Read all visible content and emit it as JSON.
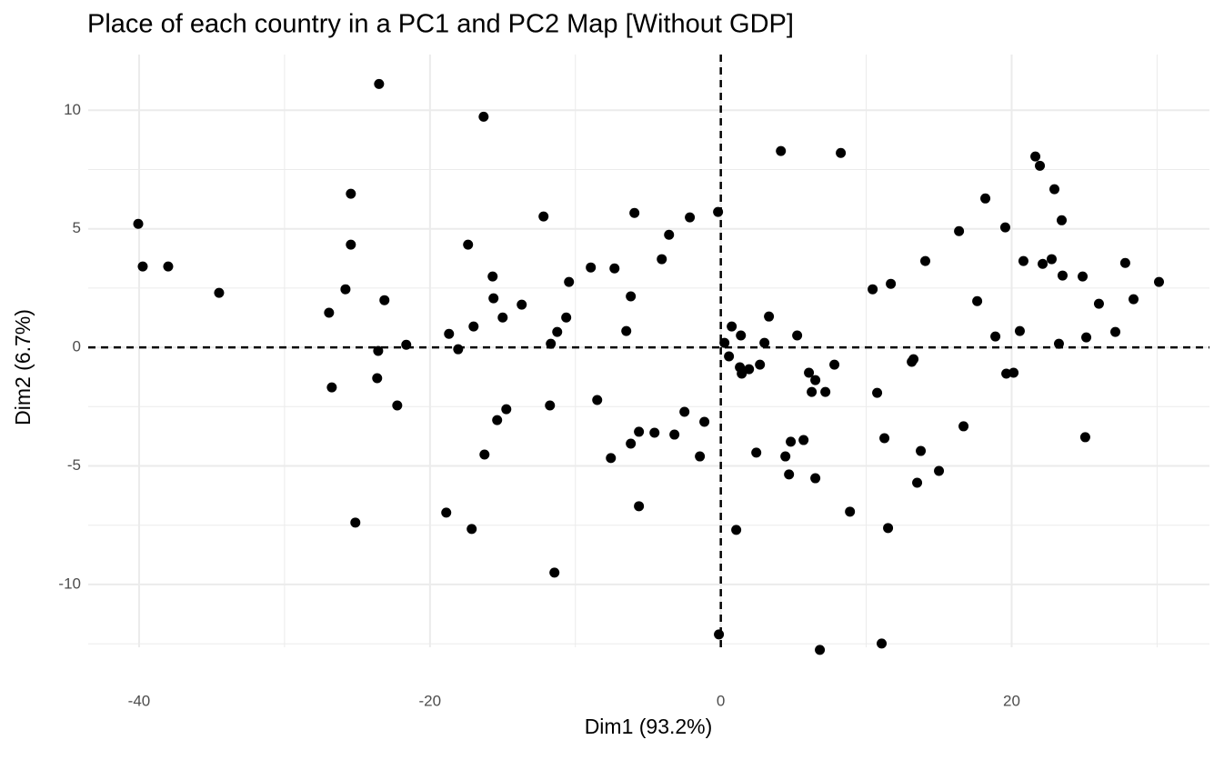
{
  "chart_data": {
    "type": "scatter",
    "title": "Place of each country in a PC1 and PC2 Map [Without GDP]",
    "x_label": "Dim1 (93.2%)",
    "y_label": "Dim2 (6.7%)",
    "xlim": [
      -43.5,
      33.6
    ],
    "ylim": [
      -12.65,
      12.35
    ],
    "xticks": [
      -40,
      -20,
      0,
      20
    ],
    "yticks": [
      -10,
      -5,
      0,
      5,
      10
    ],
    "minor_xticks": [
      -30,
      -10,
      10,
      30
    ],
    "minor_yticks": [
      -12.5,
      -7.5,
      -2.5,
      2.5,
      7.5
    ],
    "grid": true,
    "color": "#000000",
    "reference_lines": {
      "x": 0,
      "y": 0
    },
    "series": [
      {
        "name": "countries",
        "color": "#000000",
        "x": [
          -40.06,
          -39.75,
          -38.0,
          -34.5,
          -26.94,
          -26.75,
          -25.81,
          -25.44,
          -25.44,
          -25.13,
          -23.5,
          -23.56,
          -23.63,
          -23.13,
          -22.25,
          -21.63,
          -18.88,
          -18.69,
          -18.06,
          -17.38,
          -17.13,
          -17.0,
          -16.31,
          -16.25,
          -15.69,
          -15.63,
          -15.38,
          -15.0,
          -14.75,
          -13.69,
          -12.19,
          -11.75,
          -11.69,
          -11.44,
          -11.25,
          -10.63,
          -10.44,
          -8.94,
          -8.5,
          -7.56,
          -7.31,
          -6.5,
          -6.19,
          -6.19,
          -5.94,
          -5.63,
          -5.63,
          -4.56,
          -4.06,
          -3.56,
          -3.19,
          -2.5,
          -2.13,
          -1.44,
          -1.13,
          -0.19,
          -0.13,
          0.25,
          0.56,
          0.75,
          1.06,
          1.31,
          1.38,
          1.44,
          1.94,
          2.44,
          2.69,
          3.0,
          3.31,
          4.13,
          4.44,
          4.69,
          4.81,
          5.25,
          5.69,
          6.06,
          6.25,
          6.5,
          6.5,
          6.81,
          7.19,
          7.81,
          8.25,
          8.88,
          10.44,
          11.06,
          11.25,
          11.5,
          11.69,
          10.75,
          13.13,
          13.25,
          13.5,
          13.75,
          14.06,
          15.0,
          16.38,
          16.69,
          17.63,
          18.19,
          18.88,
          19.56,
          19.63,
          20.13,
          20.56,
          20.81,
          21.63,
          21.94,
          22.13,
          22.75,
          22.94,
          23.25,
          23.44,
          23.5,
          24.88,
          25.06,
          25.13,
          26.0,
          27.13,
          27.81,
          28.38,
          30.13
        ],
        "values": [
          5.21,
          3.41,
          3.41,
          2.3,
          1.46,
          -1.69,
          2.45,
          6.48,
          4.33,
          -7.39,
          11.11,
          -0.15,
          -1.3,
          1.99,
          -2.45,
          0.11,
          -6.97,
          0.57,
          -0.08,
          4.33,
          -7.66,
          0.88,
          9.73,
          -4.52,
          2.99,
          2.07,
          -3.07,
          1.26,
          -2.61,
          1.8,
          5.52,
          -2.45,
          0.15,
          -9.5,
          0.65,
          1.26,
          2.76,
          3.37,
          -2.22,
          -4.67,
          3.33,
          0.69,
          2.15,
          -4.06,
          5.67,
          -3.56,
          -6.7,
          -3.6,
          3.72,
          4.75,
          -3.68,
          -2.72,
          5.48,
          -4.6,
          -3.14,
          5.71,
          -12.11,
          0.19,
          -0.38,
          0.88,
          -7.7,
          -0.84,
          0.5,
          -1.11,
          -0.92,
          -4.44,
          -0.73,
          0.19,
          1.3,
          8.28,
          -4.6,
          -5.36,
          -3.98,
          0.5,
          -3.91,
          -1.07,
          -1.88,
          -1.38,
          -5.52,
          -12.76,
          -1.88,
          -0.73,
          8.2,
          -6.93,
          2.45,
          -12.49,
          -3.83,
          -7.62,
          2.68,
          -1.92,
          -0.61,
          -0.5,
          -5.71,
          -4.37,
          3.64,
          -5.21,
          4.9,
          -3.33,
          1.95,
          6.28,
          0.46,
          5.06,
          -1.11,
          -1.07,
          0.69,
          3.64,
          8.05,
          7.66,
          3.52,
          3.72,
          6.67,
          0.15,
          5.36,
          3.03,
          2.99,
          -3.79,
          0.42,
          1.84,
          0.65,
          3.56,
          2.03,
          2.76
        ]
      }
    ]
  }
}
